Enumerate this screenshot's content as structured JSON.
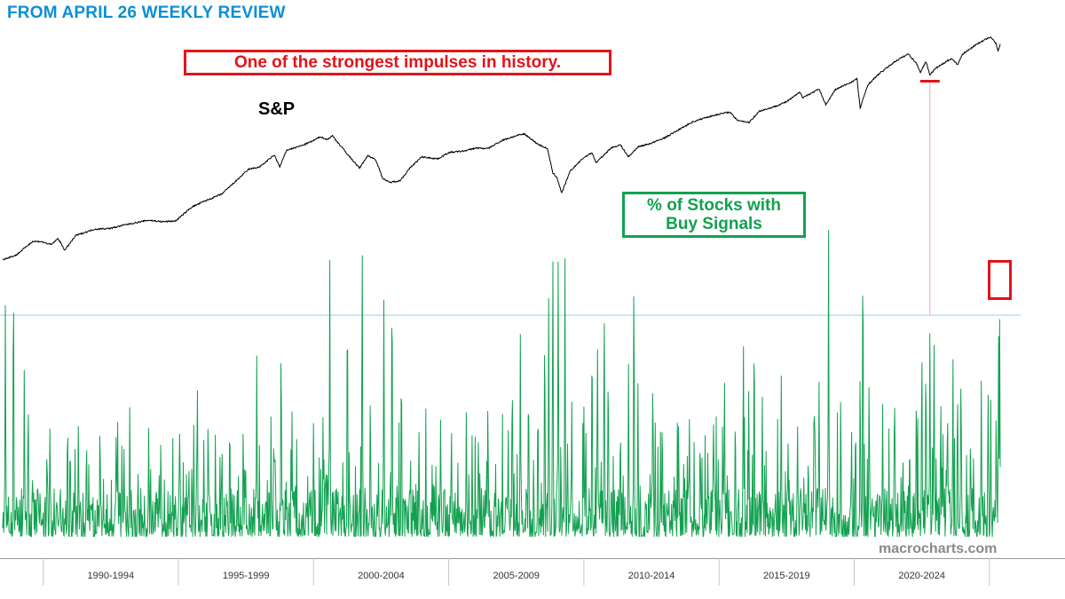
{
  "header": {
    "title": "FROM APRIL 26 WEEKLY REVIEW"
  },
  "annotations": {
    "headline": "One of the strongest impulses in history.",
    "sp_label": "S&P",
    "indicator_line1": "% of Stocks with",
    "indicator_line2": "Buy Signals",
    "watermark": "macrocharts.com"
  },
  "colors": {
    "header": "#0b8fd6",
    "callout_red": "#e2131a",
    "indicator": "#12a150",
    "sp_line": "#000000",
    "threshold_line": "#a9d8ef",
    "vertical_marker": "#f2a3b0",
    "axis": "#999999"
  },
  "chart_data": {
    "type": "line",
    "x_range": [
      1988.5,
      2025.4
    ],
    "x_tick_labels": [
      "1990-1994",
      "1995-1999",
      "2000-2004",
      "2005-2009",
      "2010-2014",
      "2015-2019",
      "2020-2024"
    ],
    "series": [
      {
        "name": "S&P",
        "scale": "log",
        "points": [
          [
            1988.5,
            268
          ],
          [
            1989.0,
            285
          ],
          [
            1989.6,
            345
          ],
          [
            1989.9,
            345
          ],
          [
            1990.3,
            330
          ],
          [
            1990.55,
            360
          ],
          [
            1990.8,
            305
          ],
          [
            1991.2,
            375
          ],
          [
            1991.9,
            410
          ],
          [
            1992.5,
            415
          ],
          [
            1993.0,
            435
          ],
          [
            1993.9,
            465
          ],
          [
            1994.4,
            455
          ],
          [
            1994.9,
            460
          ],
          [
            1995.5,
            560
          ],
          [
            1996.0,
            610
          ],
          [
            1996.6,
            670
          ],
          [
            1997.0,
            770
          ],
          [
            1997.6,
            950
          ],
          [
            1998.0,
            980
          ],
          [
            1998.55,
            1160
          ],
          [
            1998.75,
            980
          ],
          [
            1999.0,
            1240
          ],
          [
            1999.6,
            1330
          ],
          [
            2000.0,
            1420
          ],
          [
            2000.25,
            1500
          ],
          [
            2000.5,
            1440
          ],
          [
            2000.7,
            1520
          ],
          [
            2001.0,
            1320
          ],
          [
            2001.3,
            1150
          ],
          [
            2001.7,
            965
          ],
          [
            2002.0,
            1150
          ],
          [
            2002.3,
            1090
          ],
          [
            2002.55,
            840
          ],
          [
            2002.8,
            790
          ],
          [
            2003.2,
            810
          ],
          [
            2003.6,
            980
          ],
          [
            2004.0,
            1130
          ],
          [
            2004.6,
            1100
          ],
          [
            2005.0,
            1200
          ],
          [
            2005.6,
            1230
          ],
          [
            2006.0,
            1280
          ],
          [
            2006.45,
            1270
          ],
          [
            2007.0,
            1430
          ],
          [
            2007.5,
            1520
          ],
          [
            2007.8,
            1560
          ],
          [
            2008.3,
            1350
          ],
          [
            2008.65,
            1270
          ],
          [
            2008.85,
            900
          ],
          [
            2009.0,
            850
          ],
          [
            2009.18,
            680
          ],
          [
            2009.5,
            930
          ],
          [
            2010.0,
            1120
          ],
          [
            2010.3,
            1200
          ],
          [
            2010.45,
            1040
          ],
          [
            2011.0,
            1280
          ],
          [
            2011.35,
            1340
          ],
          [
            2011.65,
            1130
          ],
          [
            2012.0,
            1300
          ],
          [
            2012.5,
            1370
          ],
          [
            2013.0,
            1480
          ],
          [
            2013.5,
            1650
          ],
          [
            2014.0,
            1840
          ],
          [
            2014.5,
            1960
          ],
          [
            2015.0,
            2060
          ],
          [
            2015.4,
            2120
          ],
          [
            2015.65,
            1900
          ],
          [
            2016.1,
            1830
          ],
          [
            2016.5,
            2150
          ],
          [
            2017.0,
            2270
          ],
          [
            2017.5,
            2450
          ],
          [
            2018.0,
            2800
          ],
          [
            2018.1,
            2600
          ],
          [
            2018.7,
            2920
          ],
          [
            2018.95,
            2350
          ],
          [
            2019.3,
            2900
          ],
          [
            2019.9,
            3230
          ],
          [
            2020.1,
            3380
          ],
          [
            2020.22,
            2240
          ],
          [
            2020.5,
            3100
          ],
          [
            2020.9,
            3600
          ],
          [
            2021.5,
            4300
          ],
          [
            2022.0,
            4790
          ],
          [
            2022.3,
            4200
          ],
          [
            2022.45,
            3700
          ],
          [
            2022.65,
            4300
          ],
          [
            2022.8,
            3580
          ],
          [
            2023.0,
            3900
          ],
          [
            2023.6,
            4500
          ],
          [
            2023.82,
            4120
          ],
          [
            2024.0,
            4760
          ],
          [
            2024.5,
            5450
          ],
          [
            2024.8,
            5800
          ],
          [
            2025.05,
            6100
          ],
          [
            2025.25,
            5500
          ],
          [
            2025.32,
            4980
          ],
          [
            2025.4,
            5500
          ]
        ]
      },
      {
        "name": "% of Stocks with Buy Signals",
        "scale": "linear",
        "spikes": [
          [
            1988.6,
            60
          ],
          [
            1988.9,
            71
          ],
          [
            1989.3,
            45
          ],
          [
            1990.25,
            28
          ],
          [
            1990.9,
            33
          ],
          [
            1991.3,
            30
          ],
          [
            1991.6,
            28
          ],
          [
            1992.1,
            32
          ],
          [
            1992.7,
            29
          ],
          [
            1993.2,
            31
          ],
          [
            1993.9,
            27
          ],
          [
            1994.35,
            26
          ],
          [
            1995.05,
            30
          ],
          [
            1995.7,
            42
          ],
          [
            1996.1,
            33
          ],
          [
            1996.9,
            32
          ],
          [
            1997.4,
            30
          ],
          [
            1997.9,
            43
          ],
          [
            1998.55,
            28
          ],
          [
            1998.8,
            53
          ],
          [
            1999.2,
            31
          ],
          [
            2000.0,
            30
          ],
          [
            2000.35,
            32
          ],
          [
            2000.6,
            66
          ],
          [
            2001.25,
            65
          ],
          [
            2001.8,
            74
          ],
          [
            2002.1,
            38
          ],
          [
            2002.6,
            56
          ],
          [
            2002.9,
            70
          ],
          [
            2003.25,
            48
          ],
          [
            2003.9,
            26
          ],
          [
            2004.7,
            31
          ],
          [
            2005.1,
            30
          ],
          [
            2005.65,
            31
          ],
          [
            2006.1,
            27
          ],
          [
            2006.45,
            36
          ],
          [
            2007.2,
            28
          ],
          [
            2007.35,
            44
          ],
          [
            2007.65,
            49
          ],
          [
            2007.95,
            43
          ],
          [
            2008.3,
            38
          ],
          [
            2008.55,
            57
          ],
          [
            2008.7,
            60
          ],
          [
            2008.85,
            72
          ],
          [
            2009.05,
            70
          ],
          [
            2009.3,
            65
          ],
          [
            2009.55,
            35
          ],
          [
            2010.0,
            32
          ],
          [
            2010.3,
            56
          ],
          [
            2010.5,
            51
          ],
          [
            2010.75,
            64
          ],
          [
            2010.9,
            46
          ],
          [
            2011.35,
            32
          ],
          [
            2011.65,
            41
          ],
          [
            2011.85,
            70
          ],
          [
            2012.0,
            37
          ],
          [
            2012.55,
            44
          ],
          [
            2012.9,
            33
          ],
          [
            2013.5,
            32
          ],
          [
            2013.9,
            31
          ],
          [
            2014.3,
            29
          ],
          [
            2014.8,
            31
          ],
          [
            2015.2,
            42
          ],
          [
            2015.6,
            34
          ],
          [
            2015.9,
            50
          ],
          [
            2016.1,
            38
          ],
          [
            2016.3,
            57
          ],
          [
            2016.6,
            36
          ],
          [
            2017.3,
            40
          ],
          [
            2017.55,
            26
          ],
          [
            2017.9,
            30
          ],
          [
            2018.3,
            24
          ],
          [
            2018.55,
            31
          ],
          [
            2018.7,
            37
          ],
          [
            2019.05,
            73
          ],
          [
            2019.5,
            37
          ],
          [
            2019.9,
            29
          ],
          [
            2020.05,
            33
          ],
          [
            2020.22,
            45
          ],
          [
            2020.32,
            78
          ],
          [
            2020.55,
            43
          ],
          [
            2021.05,
            32
          ],
          [
            2021.5,
            35
          ],
          [
            2021.8,
            24
          ],
          [
            2022.05,
            28
          ],
          [
            2022.3,
            40
          ],
          [
            2022.5,
            52
          ],
          [
            2022.65,
            49
          ],
          [
            2022.8,
            52
          ],
          [
            2022.95,
            50
          ],
          [
            2023.2,
            38
          ],
          [
            2023.45,
            37
          ],
          [
            2023.65,
            45
          ],
          [
            2023.82,
            41
          ],
          [
            2023.95,
            45
          ],
          [
            2024.3,
            28
          ],
          [
            2024.7,
            38
          ],
          [
            2024.95,
            38
          ],
          [
            2025.05,
            33
          ],
          [
            2025.25,
            34
          ],
          [
            2025.34,
            50
          ],
          [
            2025.38,
            52
          ]
        ],
        "threshold": 52
      }
    ]
  }
}
